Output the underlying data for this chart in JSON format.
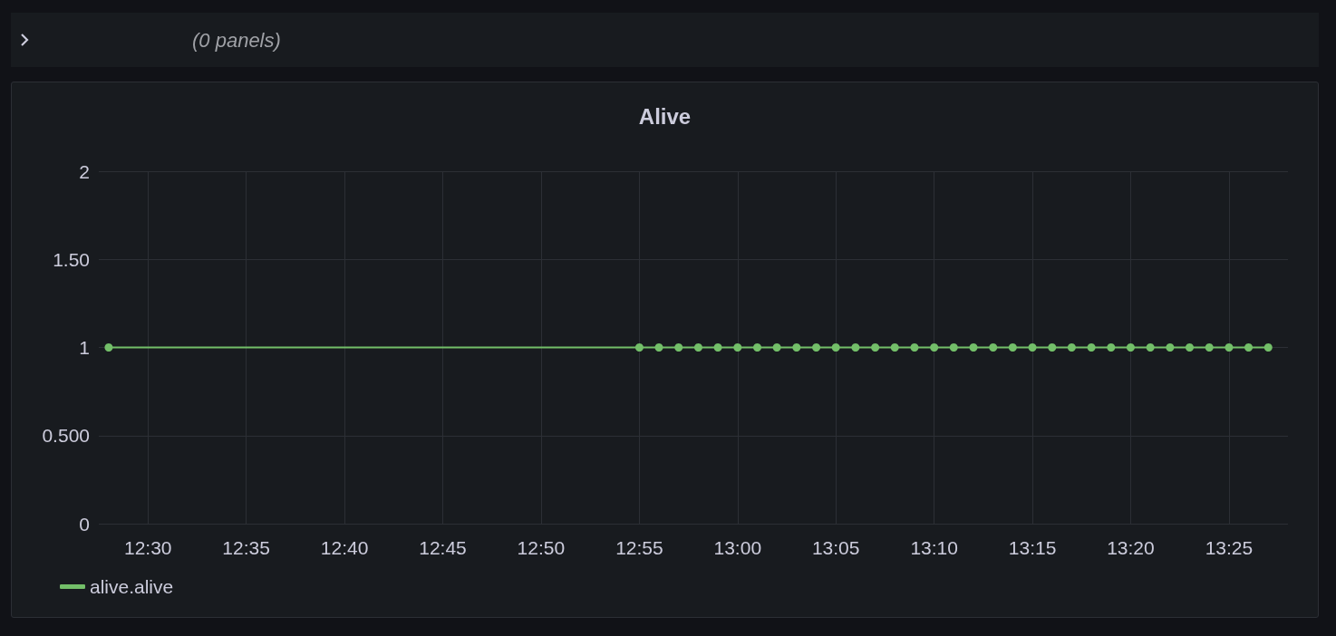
{
  "chart_data": {
    "type": "line",
    "title": "Alive",
    "annotations": [
      "(0 panels)"
    ],
    "x": [
      12.4667,
      12.9167,
      12.9333,
      12.95,
      12.9667,
      12.9833,
      13,
      13.0167,
      13.0333,
      13.05,
      13.0667,
      13.0833,
      13.1,
      13.1167,
      13.1333,
      13.15,
      13.1667,
      13.1833,
      13.2,
      13.2167,
      13.2333,
      13.25,
      13.2667,
      13.2833,
      13.3,
      13.3167,
      13.3333,
      13.35,
      13.3667,
      13.3833,
      13.4,
      13.4167,
      13.4333,
      13.45
    ],
    "series": [
      {
        "name": "alive.alive",
        "color": "#73bf69",
        "values": [
          1,
          1,
          1,
          1,
          1,
          1,
          1,
          1,
          1,
          1,
          1,
          1,
          1,
          1,
          1,
          1,
          1,
          1,
          1,
          1,
          1,
          1,
          1,
          1,
          1,
          1,
          1,
          1,
          1,
          1,
          1,
          1,
          1,
          1
        ]
      }
    ],
    "xlim": [
      12.4583,
      13.4667
    ],
    "xticks": [
      {
        "value": 12.5,
        "label": "12:30"
      },
      {
        "value": 12.5833,
        "label": "12:35"
      },
      {
        "value": 12.6667,
        "label": "12:40"
      },
      {
        "value": 12.75,
        "label": "12:45"
      },
      {
        "value": 12.8333,
        "label": "12:50"
      },
      {
        "value": 12.9167,
        "label": "12:55"
      },
      {
        "value": 13,
        "label": "13:00"
      },
      {
        "value": 13.0833,
        "label": "13:05"
      },
      {
        "value": 13.1667,
        "label": "13:10"
      },
      {
        "value": 13.25,
        "label": "13:15"
      },
      {
        "value": 13.3333,
        "label": "13:20"
      },
      {
        "value": 13.4167,
        "label": "13:25"
      }
    ],
    "ylim": [
      0,
      2
    ],
    "yticks": [
      0,
      {
        "value": 0.5,
        "label": "0.500"
      },
      1,
      {
        "value": 1.5,
        "label": "1.50"
      },
      2
    ],
    "grid": true,
    "legend": "bottom left",
    "marker": "circle",
    "line_style": "solid"
  }
}
